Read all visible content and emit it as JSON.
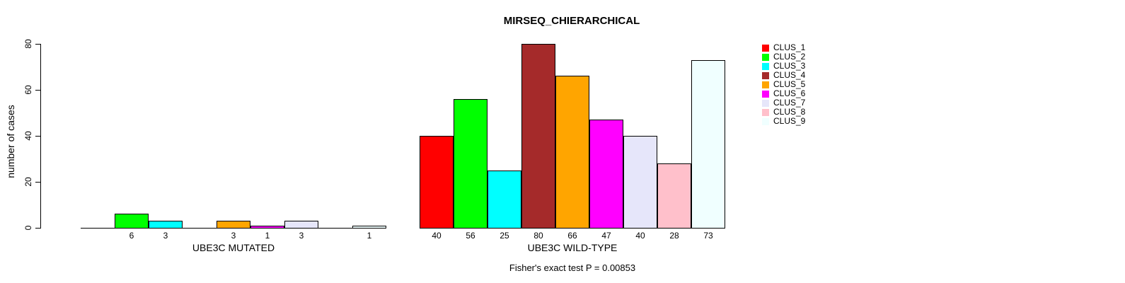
{
  "chart_data": {
    "type": "bar",
    "title": "MIRSEQ_CHIERARCHICAL",
    "ylabel": "number of cases",
    "xlabel": "",
    "ylim": [
      0,
      80
    ],
    "yticks": [
      0,
      20,
      40,
      60,
      80
    ],
    "grid": false,
    "legend_position": "right",
    "categories": [
      "CLUS_1",
      "CLUS_2",
      "CLUS_3",
      "CLUS_4",
      "CLUS_5",
      "CLUS_6",
      "CLUS_7",
      "CLUS_8",
      "CLUS_9"
    ],
    "colors": [
      "#FF0000",
      "#00FF00",
      "#00FFFF",
      "#A52A2A",
      "#FFA500",
      "#FF00FF",
      "#E6E6FA",
      "#FFC0CB",
      "#F0FFFF"
    ],
    "groups": [
      {
        "label": "UBE3C MUTATED",
        "values": [
          0,
          6,
          3,
          0,
          3,
          1,
          3,
          0,
          1
        ]
      },
      {
        "label": "UBE3C WILD-TYPE",
        "values": [
          40,
          56,
          25,
          80,
          66,
          47,
          40,
          28,
          73
        ]
      }
    ],
    "hide_zero_value_labels": true,
    "annotation": "Fisher's exact test P = 0.00853",
    "bar_border_color": "#000000",
    "axis_color": "#000000"
  }
}
